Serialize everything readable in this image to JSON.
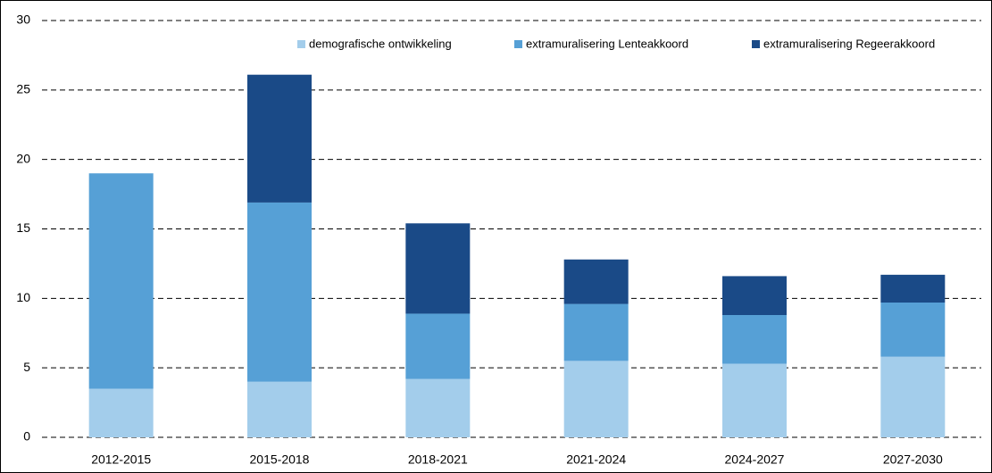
{
  "chart_data": {
    "type": "stacked_bar",
    "categories": [
      "2012-2015",
      "2015-2018",
      "2018-2021",
      "2021-2024",
      "2024-2027",
      "2027-2030"
    ],
    "series": [
      {
        "name": "demografische ontwikkeling",
        "color": "#a3cdeb",
        "values": [
          3.5,
          4.0,
          4.2,
          5.5,
          5.3,
          5.8
        ]
      },
      {
        "name": "extramuralisering Lenteakkoord",
        "color": "#56a0d6",
        "values": [
          15.5,
          12.9,
          4.7,
          4.1,
          3.5,
          3.9
        ]
      },
      {
        "name": "extramuralisering Regeerakkoord",
        "color": "#1a4a87",
        "values": [
          0,
          9.2,
          6.5,
          3.2,
          2.8,
          2.0
        ]
      }
    ],
    "ylim": [
      0,
      30
    ],
    "yticks": [
      0,
      5,
      10,
      15,
      20,
      25,
      30
    ],
    "grid": true,
    "legend": "top-right"
  }
}
